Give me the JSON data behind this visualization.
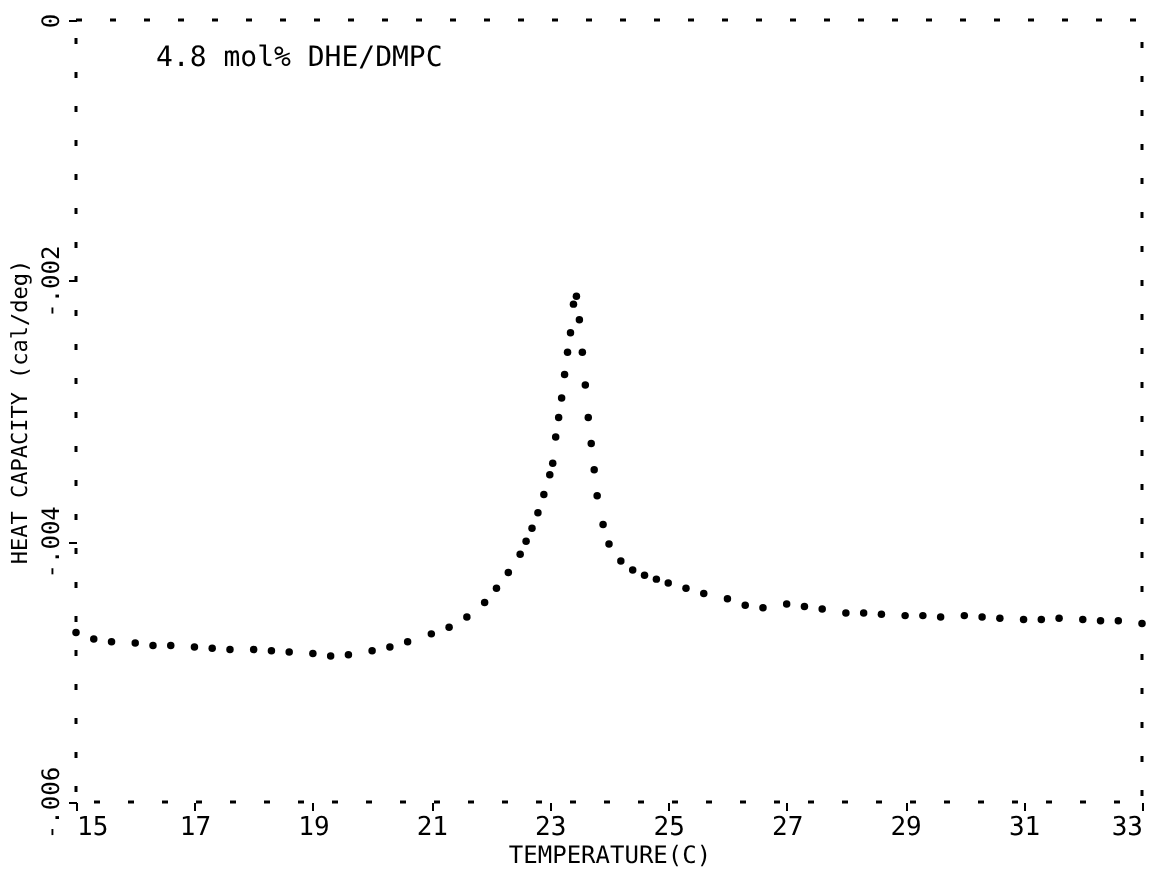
{
  "chart_data": {
    "type": "scatter",
    "xlabel": "TEMPERATURE(C)",
    "ylabel": "HEAT CAPACITY (cal/deg)",
    "annotations": [
      "4.8 mol% DHE/DMPC"
    ],
    "xlim": [
      15,
      33
    ],
    "xticks": [
      15,
      17,
      19,
      21,
      23,
      25,
      27,
      29,
      31,
      33
    ],
    "ylim": [
      -0.006,
      0
    ],
    "yticks": [
      {
        "value": -0.006,
        "label": "-.006"
      },
      {
        "value": -0.004,
        "label": "-.004"
      },
      {
        "value": -0.002,
        "label": "-.002"
      },
      {
        "value": 0,
        "label": "0"
      }
    ],
    "grid": false,
    "marker": "circle",
    "series": [
      {
        "color": "#000000",
        "x": [
          15.0,
          15.3,
          15.6,
          16.0,
          16.3,
          16.6,
          17.0,
          17.3,
          17.6,
          18.0,
          18.3,
          18.6,
          19.0,
          19.3,
          19.6,
          20.0,
          20.3,
          20.6,
          21.0,
          21.3,
          21.6,
          21.9,
          22.1,
          22.3,
          22.5,
          22.6,
          22.7,
          22.8,
          22.9,
          23.0,
          23.05,
          23.1,
          23.15,
          23.2,
          23.25,
          23.3,
          23.35,
          23.4,
          23.45,
          23.5,
          23.55,
          23.6,
          23.65,
          23.7,
          23.75,
          23.8,
          23.9,
          24.0,
          24.2,
          24.4,
          24.6,
          24.8,
          25.0,
          25.3,
          25.6,
          26.0,
          26.3,
          26.6,
          27.0,
          27.3,
          27.6,
          28.0,
          28.3,
          28.6,
          29.0,
          29.3,
          29.6,
          30.0,
          30.3,
          30.6,
          31.0,
          31.3,
          31.6,
          32.0,
          32.3,
          32.6,
          33.0
        ],
        "values": [
          -0.0047,
          -0.00475,
          -0.00477,
          -0.00478,
          -0.0048,
          -0.0048,
          -0.00481,
          -0.00482,
          -0.00483,
          -0.00483,
          -0.00484,
          -0.00485,
          -0.00486,
          -0.00488,
          -0.00487,
          -0.00484,
          -0.00481,
          -0.00477,
          -0.00471,
          -0.00466,
          -0.00458,
          -0.00447,
          -0.00436,
          -0.00424,
          -0.0041,
          -0.004,
          -0.0039,
          -0.00378,
          -0.00364,
          -0.00349,
          -0.0034,
          -0.0032,
          -0.00305,
          -0.0029,
          -0.00272,
          -0.00255,
          -0.0024,
          -0.00218,
          -0.00212,
          -0.0023,
          -0.00255,
          -0.0028,
          -0.00305,
          -0.00325,
          -0.00345,
          -0.00365,
          -0.00387,
          -0.00402,
          -0.00415,
          -0.00422,
          -0.00426,
          -0.00429,
          -0.00432,
          -0.00436,
          -0.0044,
          -0.00444,
          -0.00449,
          -0.00451,
          -0.00448,
          -0.0045,
          -0.00452,
          -0.00455,
          -0.00455,
          -0.00456,
          -0.00457,
          -0.00457,
          -0.00458,
          -0.00457,
          -0.00458,
          -0.00459,
          -0.0046,
          -0.0046,
          -0.00459,
          -0.0046,
          -0.00461,
          -0.00461,
          -0.00463
        ]
      }
    ]
  }
}
